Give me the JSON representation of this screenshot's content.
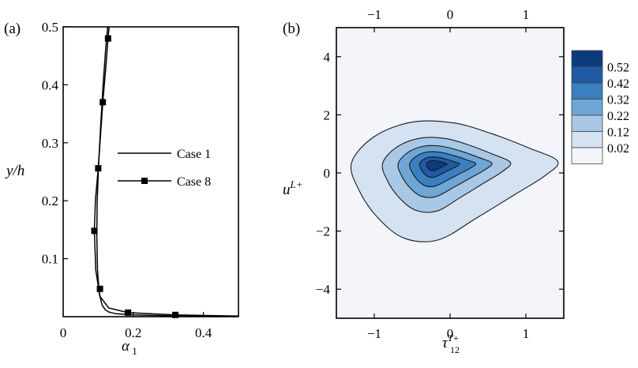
{
  "chart_data": [
    {
      "type": "line",
      "panel_label": "(a)",
      "xlabel": "α",
      "xlabel_sub": "1",
      "ylabel": "y/h",
      "xlim": [
        0,
        0.5
      ],
      "ylim": [
        0,
        0.5
      ],
      "x_ticks": [
        0.2,
        0.4
      ],
      "x_tick_labels": [
        "0.2",
        "0.4"
      ],
      "origin_label": "0",
      "y_ticks": [
        0.1,
        0.2,
        0.3,
        0.4,
        0.5
      ],
      "y_tick_labels": [
        "0.1",
        "0.2",
        "0.3",
        "0.4",
        "0.5"
      ],
      "legend_position": "center-right",
      "series": [
        {
          "name": "Case 1",
          "marker": "none",
          "x": [
            0.5,
            0.4,
            0.3,
            0.2,
            0.15,
            0.13,
            0.12,
            0.111,
            0.103,
            0.098,
            0.096,
            0.097,
            0.101,
            0.107,
            0.114,
            0.121,
            0.127
          ],
          "y": [
            0.0005,
            0.001,
            0.0015,
            0.003,
            0.005,
            0.008,
            0.012,
            0.02,
            0.04,
            0.08,
            0.14,
            0.2,
            0.26,
            0.33,
            0.4,
            0.46,
            0.5
          ]
        },
        {
          "name": "Case 8",
          "marker": "square",
          "x": [
            0.5,
            0.32,
            0.185,
            0.13,
            0.105,
            0.093,
            0.089,
            0.092,
            0.1,
            0.113,
            0.123,
            0.128,
            0.131
          ],
          "y": [
            0.001,
            0.003,
            0.007,
            0.015,
            0.035,
            0.08,
            0.148,
            0.2,
            0.256,
            0.37,
            0.44,
            0.48,
            0.5
          ],
          "marker_points": [
            {
              "x": 0.32,
              "y": 0.003
            },
            {
              "x": 0.185,
              "y": 0.007
            },
            {
              "x": 0.105,
              "y": 0.048
            },
            {
              "x": 0.089,
              "y": 0.148
            },
            {
              "x": 0.1,
              "y": 0.256
            },
            {
              "x": 0.113,
              "y": 0.37
            },
            {
              "x": 0.128,
              "y": 0.48
            }
          ]
        }
      ]
    },
    {
      "type": "heatmap",
      "subtype": "filled-contour",
      "panel_label": "(b)",
      "xlabel": "τ",
      "xlabel_sup": "T+",
      "xlabel_sub": "12",
      "ylabel": "u",
      "ylabel_sup": "L+",
      "xlim": [
        -1.5,
        1.5
      ],
      "ylim": [
        -5,
        5
      ],
      "x_ticks": [
        -1,
        0,
        1
      ],
      "x_tick_labels": [
        "−1",
        "0",
        "1"
      ],
      "y_ticks": [
        -4,
        -2,
        0,
        2,
        4
      ],
      "y_tick_labels": [
        "−4",
        "−2",
        "0",
        "2",
        "4"
      ],
      "peak": {
        "x": -0.22,
        "y": 0.3
      },
      "levels": [
        0.02,
        0.12,
        0.22,
        0.32,
        0.42,
        0.52
      ],
      "level_labels": [
        "0.52",
        "0.42",
        "0.32",
        "0.22",
        "0.12",
        "0.02"
      ],
      "colors": [
        "#f3f5fb",
        "#d5e2f2",
        "#a9c8e6",
        "#6ea6d5",
        "#3a7fc0",
        "#1f5aa5",
        "#0d3a7a"
      ]
    }
  ]
}
